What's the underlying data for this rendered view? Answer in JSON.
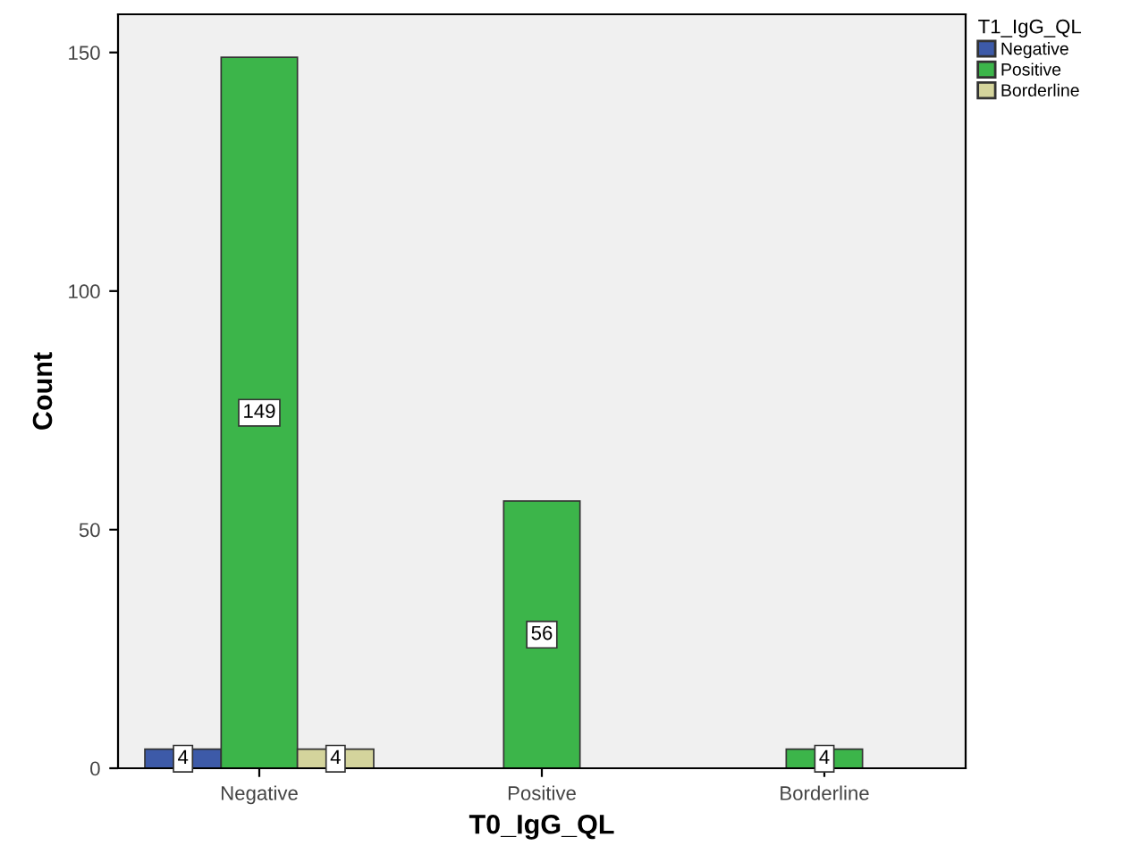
{
  "chart_data": {
    "type": "bar",
    "xlabel": "T0_IgG_QL",
    "ylabel": "Count",
    "legend_title": "T1_IgG_QL",
    "categories": [
      "Negative",
      "Positive",
      "Borderline"
    ],
    "series": [
      {
        "name": "Negative",
        "color": "#3d5aa8",
        "values": [
          4,
          null,
          null
        ]
      },
      {
        "name": "Positive",
        "color": "#3cb54a",
        "values": [
          149,
          56,
          4
        ]
      },
      {
        "name": "Borderline",
        "color": "#d4d49c",
        "values": [
          4,
          null,
          null
        ]
      }
    ],
    "ylim": [
      0,
      158
    ],
    "yticks": [
      0,
      50,
      100,
      150
    ],
    "data_labels": true,
    "legend": "top right",
    "grid": false
  }
}
